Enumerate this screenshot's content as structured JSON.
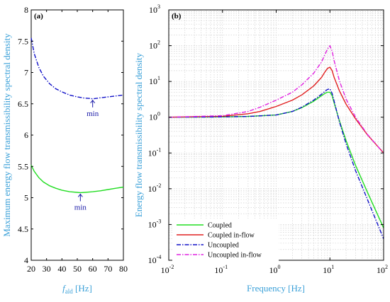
{
  "colors": {
    "axis_label": "#3aa0d8",
    "coupled": "#22dd22",
    "coupled_inflow": "#e02020",
    "uncoupled": "#1010c8",
    "uncoupled_inflow": "#e020e0",
    "annotation": "#1a1aa8"
  },
  "chart_data": [
    {
      "type": "line",
      "panel_label": "(a)",
      "xlabel_main": "f",
      "xlabel_sub": "ald",
      "xlabel_unit": " [Hz]",
      "ylabel": "Maximum energy flow transmissibility spectral density",
      "xlim": [
        20,
        80
      ],
      "ylim": [
        4,
        8
      ],
      "xticks": [
        "20",
        "30",
        "40",
        "50",
        "60",
        "70",
        "80"
      ],
      "yticks": [
        "4",
        "4.5",
        "5",
        "5.5",
        "6",
        "6.5",
        "7",
        "7.5",
        "8"
      ],
      "grid": false,
      "series": [
        {
          "key": "uncoupled",
          "style": "dash-dot",
          "x": [
            20,
            22,
            25,
            28,
            32,
            36,
            40,
            45,
            50,
            55,
            58,
            60,
            62,
            65,
            70,
            75,
            80
          ],
          "y": [
            7.55,
            7.3,
            7.08,
            6.94,
            6.82,
            6.74,
            6.69,
            6.64,
            6.61,
            6.59,
            6.585,
            6.58,
            6.585,
            6.595,
            6.61,
            6.625,
            6.64
          ]
        },
        {
          "key": "coupled",
          "style": "solid",
          "x": [
            20,
            22,
            25,
            28,
            32,
            36,
            40,
            45,
            50,
            52,
            55,
            60,
            65,
            70,
            75,
            80
          ],
          "y": [
            5.52,
            5.42,
            5.32,
            5.25,
            5.19,
            5.15,
            5.12,
            5.095,
            5.085,
            5.08,
            5.085,
            5.095,
            5.11,
            5.13,
            5.15,
            5.17
          ]
        }
      ],
      "annotations": [
        {
          "text": "min",
          "x": 60,
          "y": 6.58,
          "arrow_to_y": 6.58,
          "label_y": 6.33
        },
        {
          "text": "min",
          "x": 52,
          "y": 5.08,
          "arrow_to_y": 5.08,
          "label_y": 4.83
        }
      ]
    },
    {
      "type": "line",
      "panel_label": "(b)",
      "xlabel": "Frequency [Hz]",
      "ylabel": "Energy flow transmissibility spectral density",
      "xscale": "log",
      "yscale": "log",
      "xlim": [
        0.01,
        100
      ],
      "ylim": [
        0.0001,
        1000
      ],
      "xtick_base": [
        "10",
        "10",
        "10",
        "10",
        "10"
      ],
      "xtick_exp": [
        "-2",
        "-1",
        "0",
        "1",
        "2"
      ],
      "ytick_base": [
        "10",
        "10",
        "10",
        "10",
        "10",
        "10",
        "10",
        "10"
      ],
      "ytick_exp": [
        "-4",
        "-3",
        "-2",
        "-1",
        "0",
        "1",
        "2",
        "3"
      ],
      "grid": true,
      "legend_position": "bottom-left",
      "series": [
        {
          "key": "coupled",
          "name": "Coupled",
          "style": "solid",
          "x": [
            0.01,
            0.1,
            0.3,
            1,
            2,
            3,
            5,
            7,
            8,
            9,
            10,
            11,
            12,
            15,
            20,
            30,
            50,
            100
          ],
          "y": [
            1.0,
            1.02,
            1.05,
            1.15,
            1.45,
            1.85,
            2.8,
            4.0,
            4.6,
            5.0,
            5.0,
            4.0,
            2.5,
            0.8,
            0.22,
            0.045,
            0.008,
            0.0008
          ]
        },
        {
          "key": "coupled_inflow",
          "name": "Coupled in-flow",
          "style": "solid",
          "x": [
            0.01,
            0.1,
            0.3,
            0.5,
            1,
            2,
            3,
            5,
            7,
            8,
            9,
            10,
            11,
            12,
            15,
            20,
            30,
            50,
            100
          ],
          "y": [
            1.0,
            1.06,
            1.25,
            1.45,
            2.0,
            3.0,
            4.2,
            7.5,
            13.0,
            18.0,
            23.0,
            25.0,
            20.0,
            13.0,
            5.5,
            2.3,
            0.9,
            0.32,
            0.1
          ]
        },
        {
          "key": "uncoupled",
          "name": "Uncoupled",
          "style": "dash-dot",
          "x": [
            0.01,
            0.1,
            0.3,
            1,
            2,
            3,
            5,
            7,
            8,
            9,
            10,
            11,
            12,
            15,
            20,
            30,
            50,
            100
          ],
          "y": [
            1.0,
            1.02,
            1.05,
            1.15,
            1.45,
            1.9,
            3.0,
            4.4,
            5.2,
            6.0,
            6.2,
            4.6,
            2.8,
            0.75,
            0.18,
            0.032,
            0.005,
            0.0004
          ]
        },
        {
          "key": "uncoupled_inflow",
          "name": "Uncoupled in-flow",
          "style": "dash-dot",
          "x": [
            0.01,
            0.1,
            0.3,
            0.5,
            1,
            2,
            3,
            5,
            7,
            8,
            9,
            10,
            11,
            12,
            15,
            20,
            30,
            50,
            100
          ],
          "y": [
            1.0,
            1.1,
            1.45,
            1.9,
            3.0,
            5.0,
            8.0,
            17.0,
            35.0,
            55.0,
            80.0,
            100.0,
            70.0,
            38.0,
            10.5,
            3.2,
            1.0,
            0.33,
            0.1
          ]
        }
      ]
    }
  ]
}
